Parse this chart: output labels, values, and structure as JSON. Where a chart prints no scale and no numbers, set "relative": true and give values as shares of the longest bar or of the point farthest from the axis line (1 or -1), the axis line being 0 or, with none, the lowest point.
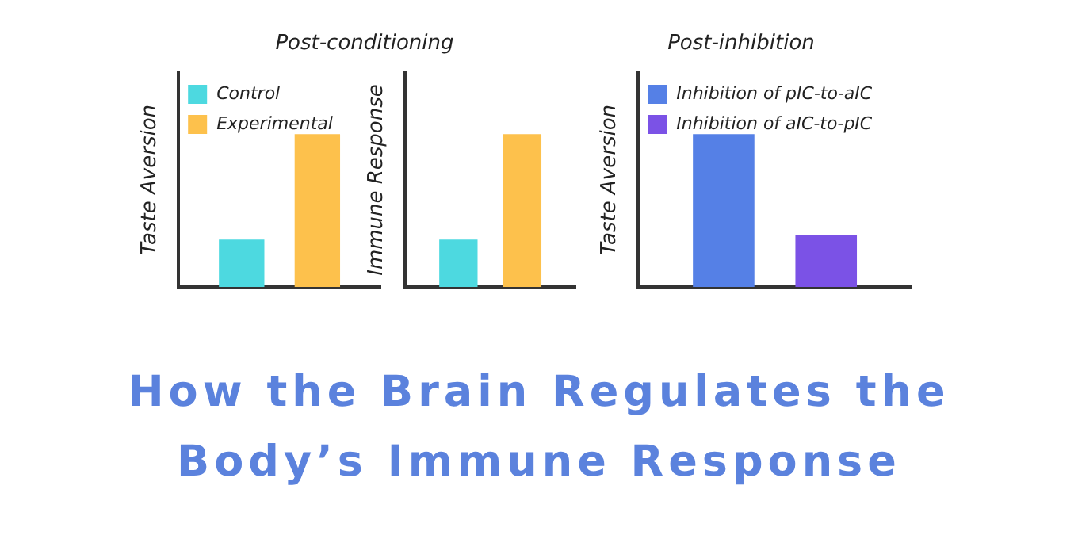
{
  "chart_data": [
    {
      "type": "bar",
      "title": "Post-conditioning",
      "ylabel": "Taste Aversion",
      "relative": true,
      "legend": "top left",
      "categories": [
        null
      ],
      "series": [
        {
          "name": "Control",
          "color": "#4dd9e0",
          "values": [
            0.31
          ]
        },
        {
          "name": "Experimental",
          "color": "#fdc14c",
          "values": [
            1
          ]
        }
      ]
    },
    {
      "type": "bar",
      "ylabel": "Immune Response",
      "relative": true,
      "categories": [
        null
      ],
      "series": [
        {
          "color": "#4dd9e0",
          "values": [
            0.31
          ]
        },
        {
          "color": "#fdc14c",
          "values": [
            1
          ]
        }
      ]
    },
    {
      "type": "bar",
      "title": "Post-inhibition",
      "ylabel": "Taste Aversion",
      "relative": true,
      "legend": "top left",
      "categories": [
        null
      ],
      "series": [
        {
          "name": "Inhibition of pIC-to-aIC",
          "color": "#5580e6",
          "values": [
            1
          ]
        },
        {
          "name": "Inhibition of aIC-to-pIC",
          "color": "#7b52e6",
          "values": [
            0.34
          ]
        }
      ]
    },
    {
      "type": "other",
      "title": "How the Brain Regulates the Body’s Immune Response"
    }
  ]
}
